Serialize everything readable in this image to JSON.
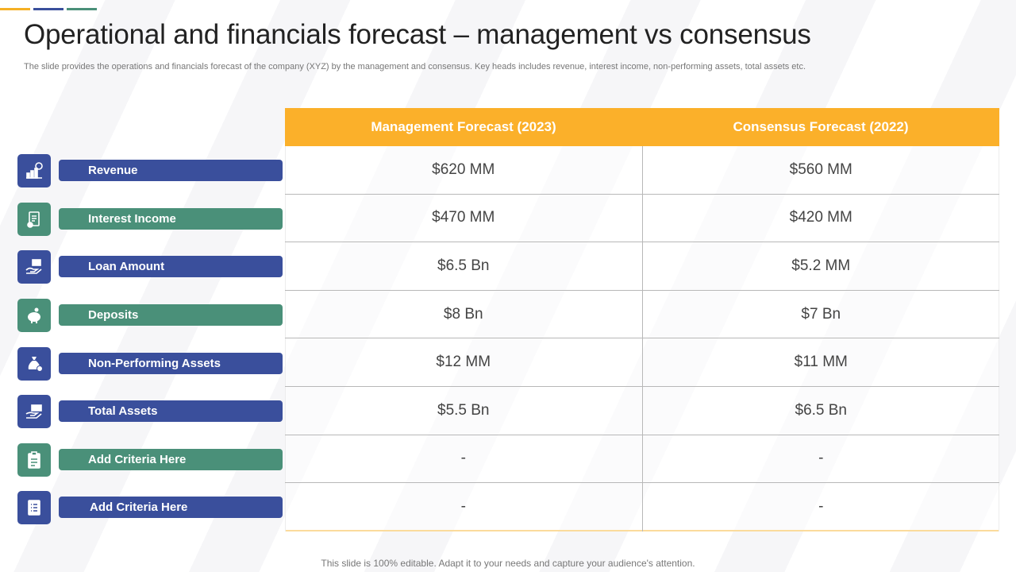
{
  "slide": {
    "title": "Operational and financials forecast – management vs consensus",
    "subtitle": "The slide provides the operations and financials forecast of the company (XYZ)  by the management and consensus. Key heads includes revenue, interest income, non-performing assets, total assets etc.",
    "footer": "This slide is 100% editable. Adapt it to your needs and capture your audience's attention."
  },
  "colors": {
    "accent_yellow": "#f5b025",
    "accent_blue": "#3a4f9c",
    "accent_green": "#4a9079",
    "header_yellow": "#fbb02a"
  },
  "table": {
    "headers": [
      "Management Forecast (2023)",
      "Consensus Forecast (2022)"
    ],
    "rows": [
      {
        "label": "Revenue",
        "icon": "revenue-chart-icon",
        "color": "blue",
        "management": "$620 MM",
        "consensus": "$560 MM"
      },
      {
        "label": "Interest Income",
        "icon": "document-money-icon",
        "color": "green",
        "management": "$470 MM",
        "consensus": "$420 MM"
      },
      {
        "label": "Loan Amount",
        "icon": "hand-money-icon",
        "color": "blue",
        "management": "$6.5 Bn",
        "consensus": "$5.2 MM"
      },
      {
        "label": "Deposits",
        "icon": "piggy-bank-icon",
        "color": "green",
        "management": "$8 Bn",
        "consensus": "$7 Bn"
      },
      {
        "label": "Non-Performing Assets",
        "icon": "money-bag-icon",
        "color": "blue",
        "management": "$12 MM",
        "consensus": "$11 MM"
      },
      {
        "label": "Total Assets",
        "icon": "hand-cash-icon",
        "color": "blue",
        "management": "$5.5 Bn",
        "consensus": "$6.5 Bn"
      },
      {
        "label": "Add Criteria Here",
        "icon": "clipboard-icon",
        "color": "green",
        "management": "-",
        "consensus": "-"
      },
      {
        "label": "Add Criteria Here",
        "icon": "checklist-icon",
        "color": "blue",
        "management": "-",
        "consensus": "-"
      }
    ]
  }
}
